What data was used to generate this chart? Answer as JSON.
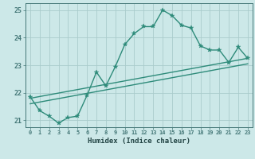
{
  "x": [
    0,
    1,
    2,
    3,
    4,
    5,
    6,
    7,
    8,
    9,
    10,
    11,
    12,
    13,
    14,
    15,
    16,
    17,
    18,
    19,
    20,
    21,
    22,
    23
  ],
  "y_main": [
    21.85,
    21.35,
    21.15,
    20.9,
    21.1,
    21.15,
    21.9,
    22.75,
    22.25,
    22.95,
    23.75,
    24.15,
    24.4,
    24.4,
    25.0,
    24.8,
    24.45,
    24.35,
    23.7,
    23.55,
    23.55,
    23.1,
    23.65,
    23.25
  ],
  "line_color": "#2e8b7a",
  "bg_color": "#cce8e8",
  "grid_color": "#aacccc",
  "axis_color": "#447777",
  "text_color": "#224444",
  "xlabel": "Humidex (Indice chaleur)",
  "ylim": [
    20.75,
    25.25
  ],
  "xlim": [
    -0.5,
    23.5
  ],
  "yticks": [
    21,
    22,
    23,
    24,
    25
  ],
  "xticks": [
    0,
    1,
    2,
    3,
    4,
    5,
    6,
    7,
    8,
    9,
    10,
    11,
    12,
    13,
    14,
    15,
    16,
    17,
    18,
    19,
    20,
    21,
    22,
    23
  ],
  "trend1_x": [
    0,
    23
  ],
  "trend1_y": [
    21.8,
    23.25
  ],
  "trend2_x": [
    0,
    23
  ],
  "trend2_y": [
    21.6,
    23.05
  ],
  "marker_size": 4.0,
  "linewidth": 1.0
}
